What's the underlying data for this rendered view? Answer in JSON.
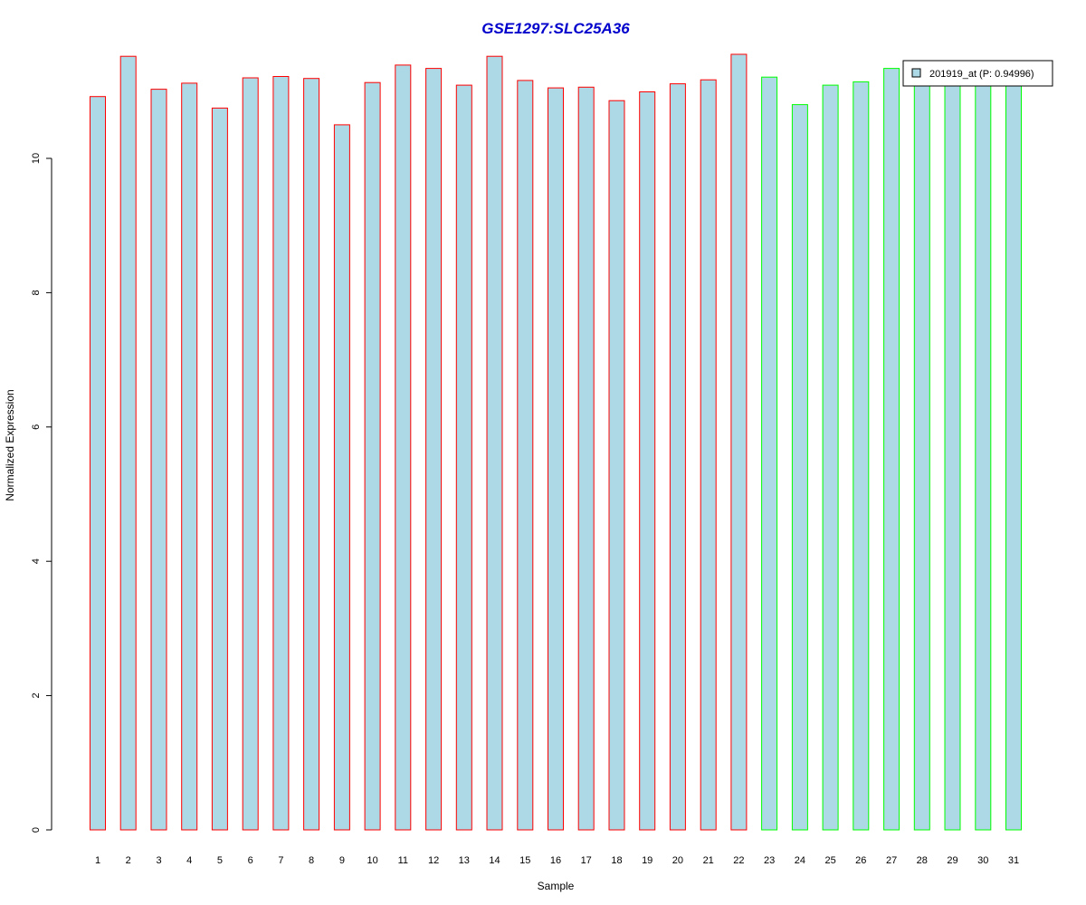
{
  "chart_data": {
    "type": "bar",
    "title": "GSE1297:SLC25A36",
    "xlabel": "Sample",
    "ylabel": "Normalized Expression",
    "ylim": [
      0,
      11.5
    ],
    "yticks": [
      0,
      2,
      4,
      6,
      8,
      10
    ],
    "categories": [
      "1",
      "2",
      "3",
      "4",
      "5",
      "6",
      "7",
      "8",
      "9",
      "10",
      "11",
      "12",
      "13",
      "14",
      "15",
      "16",
      "17",
      "18",
      "19",
      "20",
      "21",
      "22",
      "23",
      "24",
      "25",
      "26",
      "27",
      "28",
      "29",
      "30",
      "31"
    ],
    "series": [
      {
        "name": "201919_at (P: 0.94996)",
        "values": [
          10.92,
          11.52,
          11.03,
          11.12,
          10.75,
          11.2,
          11.22,
          11.19,
          10.5,
          11.13,
          11.39,
          11.34,
          11.09,
          11.52,
          11.16,
          11.05,
          11.06,
          10.86,
          10.99,
          11.11,
          11.17,
          11.55,
          11.21,
          10.8,
          11.09,
          11.14,
          11.34,
          11.2,
          11.12,
          11.18,
          11.18
        ]
      }
    ],
    "fill_color": "#add8e6",
    "group_outline_colors": [
      "#ff0000",
      "#00ff00"
    ],
    "group_sizes": [
      22,
      9
    ],
    "legend": {
      "label": "201919_at (P: 0.94996)",
      "position": "top-right",
      "swatch_color": "#add8e6"
    },
    "grid": false
  }
}
